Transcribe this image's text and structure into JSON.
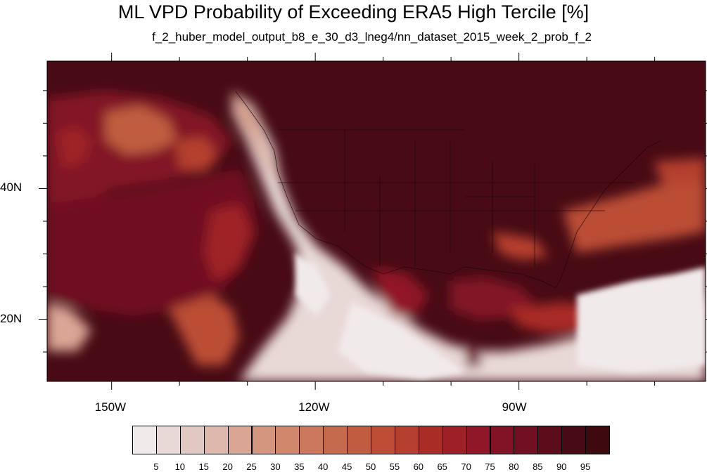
{
  "title": "ML VPD Probability of Exceeding ERA5 High Tercile [%]",
  "subtitle": "f_2_huber_model_output_b8_e_30_d3_lneg4/nn_dataset_2015_week_2_prob_f_2",
  "map": {
    "lat_labels": [
      {
        "text": "40N",
        "lat": 40
      },
      {
        "text": "20N",
        "lat": 20
      }
    ],
    "lon_labels": [
      {
        "text": "150W",
        "lon": -150
      },
      {
        "text": "120W",
        "lon": -120
      },
      {
        "text": "90W",
        "lon": -90
      }
    ],
    "extent": {
      "lon_min": -159.5,
      "lon_max": -62.5,
      "lat_min": 10.5,
      "lat_max": 59.5
    }
  },
  "colorbar": {
    "labels": [
      "5",
      "10",
      "15",
      "20",
      "25",
      "30",
      "35",
      "40",
      "45",
      "50",
      "55",
      "60",
      "65",
      "70",
      "75",
      "80",
      "85",
      "90",
      "95"
    ],
    "colors": [
      "#f1eaea",
      "#e8d9d7",
      "#e2c8c2",
      "#dfb8ad",
      "#d9a595",
      "#d4967e",
      "#d0876c",
      "#cb785c",
      "#c56a4c",
      "#c05d41",
      "#bb4e34",
      "#b53f2e",
      "#a92c27",
      "#9e2027",
      "#901728",
      "#821326",
      "#711023",
      "#5d0c1c",
      "#480b15"
    ]
  }
}
